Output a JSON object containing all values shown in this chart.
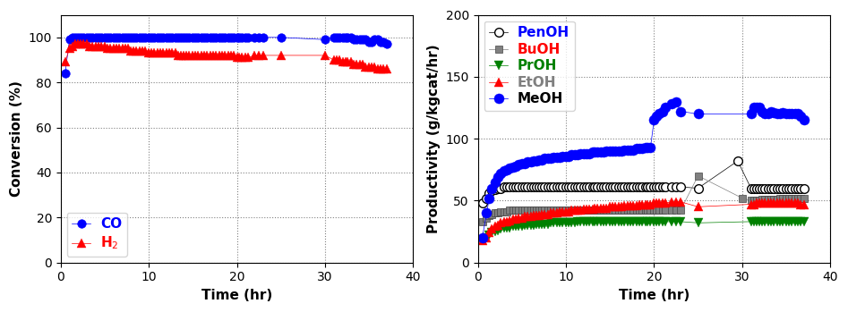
{
  "left": {
    "xlabel": "Time (hr)",
    "ylabel": "Conversion (%)",
    "xlim": [
      0,
      40
    ],
    "ylim": [
      0,
      110
    ],
    "yticks": [
      0,
      20,
      40,
      60,
      80,
      100
    ],
    "xticks": [
      0,
      10,
      20,
      30,
      40
    ],
    "CO_time": [
      0.5,
      1.0,
      1.3,
      1.6,
      2.0,
      2.3,
      2.6,
      3.0,
      3.3,
      3.6,
      4.0,
      4.3,
      4.6,
      5.0,
      5.3,
      5.6,
      6.0,
      6.3,
      6.6,
      7.0,
      7.3,
      7.6,
      8.0,
      8.3,
      8.6,
      9.0,
      9.3,
      9.6,
      10.0,
      10.3,
      10.6,
      11.0,
      11.3,
      11.6,
      12.0,
      12.3,
      12.6,
      13.0,
      13.3,
      13.6,
      14.0,
      14.3,
      14.6,
      15.0,
      15.3,
      15.6,
      16.0,
      16.3,
      16.6,
      17.0,
      17.3,
      17.6,
      18.0,
      18.3,
      18.6,
      19.0,
      19.3,
      19.6,
      20.0,
      20.3,
      20.6,
      21.0,
      21.3,
      22.0,
      22.5,
      23.0,
      25.0,
      30.0,
      31.0,
      31.3,
      31.6,
      32.0,
      32.3,
      32.6,
      33.0,
      33.3,
      33.6,
      34.0,
      34.3,
      34.6,
      35.0,
      35.3,
      35.6,
      36.0,
      36.3,
      36.6,
      37.0
    ],
    "CO_val": [
      84,
      99,
      100,
      100,
      100,
      100,
      100,
      100,
      100,
      100,
      100,
      100,
      100,
      100,
      100,
      100,
      100,
      100,
      100,
      100,
      100,
      100,
      100,
      100,
      100,
      100,
      100,
      100,
      100,
      100,
      100,
      100,
      100,
      100,
      100,
      100,
      100,
      100,
      100,
      100,
      100,
      100,
      100,
      100,
      100,
      100,
      100,
      100,
      100,
      100,
      100,
      100,
      100,
      100,
      100,
      100,
      100,
      100,
      100,
      100,
      100,
      100,
      100,
      100,
      100,
      100,
      100,
      99,
      100,
      100,
      100,
      100,
      100,
      100,
      100,
      99,
      99,
      99,
      99,
      99,
      98,
      98,
      99,
      99,
      98,
      98,
      97
    ],
    "H2_time": [
      0.5,
      1.0,
      1.3,
      1.6,
      2.0,
      2.3,
      2.6,
      3.0,
      3.3,
      3.6,
      4.0,
      4.3,
      4.6,
      5.0,
      5.3,
      5.6,
      6.0,
      6.3,
      6.6,
      7.0,
      7.3,
      7.6,
      8.0,
      8.3,
      8.6,
      9.0,
      9.3,
      9.6,
      10.0,
      10.3,
      10.6,
      11.0,
      11.3,
      11.6,
      12.0,
      12.3,
      12.6,
      13.0,
      13.3,
      13.6,
      14.0,
      14.3,
      14.6,
      15.0,
      15.3,
      15.6,
      16.0,
      16.3,
      16.6,
      17.0,
      17.3,
      17.6,
      18.0,
      18.3,
      18.6,
      19.0,
      19.3,
      19.6,
      20.0,
      20.3,
      20.6,
      21.0,
      21.3,
      22.0,
      22.5,
      23.0,
      25.0,
      30.0,
      31.0,
      31.3,
      31.6,
      32.0,
      32.3,
      32.6,
      33.0,
      33.3,
      33.6,
      34.0,
      34.3,
      34.6,
      35.0,
      35.3,
      35.6,
      36.0,
      36.3,
      36.6,
      37.0
    ],
    "H2_val": [
      89,
      95,
      96,
      97,
      97,
      97,
      97,
      97,
      96,
      96,
      96,
      96,
      96,
      96,
      95,
      95,
      95,
      95,
      95,
      95,
      95,
      95,
      94,
      94,
      94,
      94,
      94,
      94,
      93,
      93,
      93,
      93,
      93,
      93,
      93,
      93,
      93,
      93,
      92,
      92,
      92,
      92,
      92,
      92,
      92,
      92,
      92,
      92,
      92,
      92,
      92,
      92,
      92,
      92,
      92,
      92,
      92,
      92,
      91,
      91,
      91,
      91,
      91,
      92,
      92,
      92,
      92,
      92,
      90,
      90,
      90,
      89,
      89,
      89,
      89,
      88,
      88,
      88,
      88,
      87,
      87,
      87,
      87,
      86,
      86,
      86,
      86
    ],
    "legend_CO_color": "#0000ff",
    "legend_H2_color": "#ff0000"
  },
  "right": {
    "xlabel": "Time (hr)",
    "ylabel": "Productivity (g/kgcat/hr)",
    "xlim": [
      0,
      40
    ],
    "ylim": [
      0,
      200
    ],
    "yticks": [
      0,
      50,
      100,
      150,
      200
    ],
    "xticks": [
      0,
      10,
      20,
      30,
      40
    ],
    "MeOH_time": [
      0.5,
      1.0,
      1.3,
      1.6,
      2.0,
      2.3,
      2.6,
      3.0,
      3.3,
      3.6,
      4.0,
      4.3,
      4.6,
      5.0,
      5.3,
      5.6,
      6.0,
      6.3,
      6.6,
      7.0,
      7.3,
      7.6,
      8.0,
      8.3,
      8.6,
      9.0,
      9.3,
      9.6,
      10.0,
      10.3,
      10.6,
      11.0,
      11.3,
      11.6,
      12.0,
      12.3,
      12.6,
      13.0,
      13.3,
      13.6,
      14.0,
      14.3,
      14.6,
      15.0,
      15.3,
      15.6,
      16.0,
      16.3,
      16.6,
      17.0,
      17.3,
      17.6,
      18.0,
      18.3,
      18.6,
      19.0,
      19.3,
      19.6,
      20.0,
      20.3,
      20.6,
      21.0,
      21.3,
      22.0,
      22.5,
      23.0,
      25.0,
      31.0,
      31.3,
      31.6,
      32.0,
      32.3,
      32.6,
      33.0,
      33.3,
      33.6,
      34.0,
      34.3,
      34.6,
      35.0,
      35.3,
      35.6,
      36.0,
      36.3,
      36.6,
      37.0
    ],
    "MeOH_val": [
      20,
      40,
      52,
      60,
      65,
      69,
      72,
      74,
      75,
      76,
      77,
      78,
      79,
      80,
      80,
      81,
      81,
      82,
      82,
      83,
      83,
      84,
      84,
      84,
      85,
      85,
      85,
      86,
      86,
      86,
      87,
      87,
      87,
      88,
      88,
      88,
      88,
      89,
      89,
      89,
      89,
      89,
      90,
      90,
      90,
      90,
      90,
      90,
      91,
      91,
      91,
      91,
      92,
      92,
      92,
      93,
      93,
      93,
      115,
      118,
      120,
      122,
      125,
      128,
      130,
      122,
      120,
      120,
      125,
      125,
      125,
      122,
      120,
      120,
      122,
      121,
      120,
      120,
      121,
      120,
      120,
      120,
      120,
      120,
      118,
      115
    ],
    "EtOH_time": [
      0.5,
      1.0,
      1.3,
      1.6,
      2.0,
      2.3,
      2.6,
      3.0,
      3.3,
      3.6,
      4.0,
      4.3,
      4.6,
      5.0,
      5.3,
      5.6,
      6.0,
      6.3,
      6.6,
      7.0,
      7.3,
      7.6,
      8.0,
      8.3,
      8.6,
      9.0,
      9.3,
      9.6,
      10.0,
      10.3,
      10.6,
      11.0,
      11.3,
      11.6,
      12.0,
      12.3,
      12.6,
      13.0,
      13.3,
      13.6,
      14.0,
      14.3,
      14.6,
      15.0,
      15.3,
      15.6,
      16.0,
      16.3,
      16.6,
      17.0,
      17.3,
      17.6,
      18.0,
      18.3,
      18.6,
      19.0,
      19.3,
      19.6,
      20.0,
      20.3,
      20.6,
      21.0,
      21.3,
      22.0,
      22.5,
      23.0,
      25.0,
      31.0,
      31.3,
      31.6,
      32.0,
      32.3,
      32.6,
      33.0,
      33.3,
      33.6,
      34.0,
      34.3,
      34.6,
      35.0,
      35.3,
      35.6,
      36.0,
      36.3,
      36.6,
      37.0
    ],
    "EtOH_val": [
      18,
      20,
      24,
      27,
      29,
      30,
      32,
      33,
      33,
      34,
      35,
      35,
      36,
      36,
      37,
      37,
      37,
      38,
      38,
      38,
      39,
      39,
      39,
      40,
      40,
      40,
      41,
      41,
      41,
      41,
      42,
      42,
      42,
      42,
      43,
      43,
      43,
      43,
      44,
      44,
      44,
      44,
      44,
      45,
      45,
      45,
      45,
      45,
      46,
      46,
      46,
      46,
      46,
      47,
      47,
      47,
      47,
      47,
      48,
      48,
      48,
      48,
      48,
      49,
      49,
      49,
      45,
      47,
      47,
      48,
      48,
      48,
      48,
      48,
      48,
      48,
      48,
      48,
      48,
      48,
      48,
      48,
      48,
      48,
      47,
      47
    ],
    "PrOH_time": [
      0.5,
      1.0,
      1.3,
      1.6,
      2.0,
      2.3,
      2.6,
      3.0,
      3.3,
      3.6,
      4.0,
      4.3,
      4.6,
      5.0,
      5.3,
      5.6,
      6.0,
      6.3,
      6.6,
      7.0,
      7.3,
      7.6,
      8.0,
      8.3,
      8.6,
      9.0,
      9.3,
      9.6,
      10.0,
      10.3,
      10.6,
      11.0,
      11.3,
      11.6,
      12.0,
      12.3,
      12.6,
      13.0,
      13.3,
      13.6,
      14.0,
      14.3,
      14.6,
      15.0,
      15.3,
      15.6,
      16.0,
      16.3,
      16.6,
      17.0,
      17.3,
      17.6,
      18.0,
      18.3,
      18.6,
      19.0,
      19.3,
      19.6,
      20.0,
      20.3,
      20.6,
      21.0,
      21.3,
      22.0,
      22.5,
      23.0,
      25.0,
      31.0,
      31.3,
      31.6,
      32.0,
      32.3,
      32.6,
      33.0,
      33.3,
      33.6,
      34.0,
      34.3,
      34.6,
      35.0,
      35.3,
      35.6,
      36.0,
      36.3,
      36.6,
      37.0
    ],
    "PrOH_val": [
      18,
      20,
      22,
      24,
      25,
      26,
      27,
      28,
      28,
      28,
      29,
      29,
      29,
      29,
      30,
      30,
      30,
      30,
      31,
      31,
      31,
      31,
      31,
      32,
      32,
      32,
      32,
      32,
      32,
      32,
      32,
      32,
      33,
      33,
      33,
      33,
      33,
      33,
      33,
      33,
      33,
      33,
      33,
      33,
      33,
      33,
      33,
      33,
      33,
      33,
      33,
      33,
      33,
      33,
      33,
      33,
      33,
      33,
      33,
      33,
      33,
      33,
      33,
      33,
      33,
      33,
      32,
      33,
      33,
      33,
      33,
      33,
      33,
      33,
      33,
      33,
      33,
      33,
      33,
      33,
      33,
      33,
      33,
      33,
      33,
      33
    ],
    "BuOH_time": [
      0.5,
      1.0,
      1.3,
      1.6,
      2.0,
      2.3,
      2.6,
      3.0,
      3.3,
      3.6,
      4.0,
      4.3,
      4.6,
      5.0,
      5.3,
      5.6,
      6.0,
      6.3,
      6.6,
      7.0,
      7.3,
      7.6,
      8.0,
      8.3,
      8.6,
      9.0,
      9.3,
      9.6,
      10.0,
      10.3,
      10.6,
      11.0,
      11.3,
      11.6,
      12.0,
      12.3,
      12.6,
      13.0,
      13.3,
      13.6,
      14.0,
      14.3,
      14.6,
      15.0,
      15.3,
      15.6,
      16.0,
      16.3,
      16.6,
      17.0,
      17.3,
      17.6,
      18.0,
      18.3,
      18.6,
      19.0,
      19.3,
      19.6,
      20.0,
      20.3,
      20.6,
      21.0,
      21.3,
      22.0,
      22.5,
      23.0,
      25.0,
      30.0,
      31.0,
      31.3,
      31.6,
      32.0,
      32.3,
      32.6,
      33.0,
      33.3,
      33.6,
      34.0,
      34.3,
      34.6,
      35.0,
      35.3,
      35.6,
      36.0,
      36.3,
      36.6,
      37.0
    ],
    "BuOH_val": [
      33,
      36,
      38,
      39,
      40,
      40,
      41,
      41,
      41,
      42,
      42,
      42,
      42,
      42,
      42,
      42,
      42,
      42,
      42,
      42,
      42,
      42,
      42,
      42,
      42,
      42,
      42,
      42,
      42,
      42,
      42,
      42,
      42,
      42,
      42,
      42,
      42,
      42,
      42,
      42,
      42,
      42,
      42,
      42,
      42,
      42,
      42,
      42,
      42,
      42,
      42,
      42,
      42,
      42,
      42,
      42,
      42,
      42,
      42,
      42,
      42,
      42,
      42,
      42,
      42,
      42,
      70,
      52,
      50,
      50,
      50,
      50,
      51,
      51,
      51,
      51,
      51,
      51,
      52,
      52,
      52,
      52,
      52,
      52,
      52,
      52,
      52
    ],
    "PenOH_time": [
      0.5,
      1.0,
      1.3,
      1.6,
      2.0,
      2.3,
      2.6,
      3.0,
      3.3,
      3.6,
      4.0,
      4.3,
      4.6,
      5.0,
      5.3,
      5.6,
      6.0,
      6.3,
      6.6,
      7.0,
      7.3,
      7.6,
      8.0,
      8.3,
      8.6,
      9.0,
      9.3,
      9.6,
      10.0,
      10.3,
      10.6,
      11.0,
      11.3,
      11.6,
      12.0,
      12.3,
      12.6,
      13.0,
      13.3,
      13.6,
      14.0,
      14.3,
      14.6,
      15.0,
      15.3,
      15.6,
      16.0,
      16.3,
      16.6,
      17.0,
      17.3,
      17.6,
      18.0,
      18.3,
      18.6,
      19.0,
      19.3,
      19.6,
      20.0,
      20.3,
      20.6,
      21.0,
      21.3,
      22.0,
      22.5,
      23.0,
      25.0,
      29.5,
      31.0,
      31.3,
      31.6,
      32.0,
      32.3,
      32.6,
      33.0,
      33.3,
      33.6,
      34.0,
      34.3,
      34.6,
      35.0,
      35.3,
      35.6,
      36.0,
      36.3,
      36.6,
      37.0
    ],
    "PenOH_val": [
      48,
      52,
      56,
      58,
      59,
      60,
      60,
      61,
      61,
      61,
      61,
      61,
      61,
      61,
      61,
      61,
      61,
      61,
      61,
      61,
      61,
      61,
      61,
      61,
      61,
      61,
      61,
      61,
      61,
      61,
      61,
      61,
      61,
      61,
      61,
      61,
      61,
      61,
      61,
      61,
      61,
      61,
      61,
      61,
      61,
      61,
      61,
      61,
      61,
      61,
      61,
      61,
      61,
      61,
      61,
      61,
      61,
      61,
      61,
      61,
      61,
      61,
      61,
      61,
      61,
      61,
      60,
      82,
      60,
      60,
      60,
      60,
      60,
      60,
      60,
      60,
      60,
      60,
      60,
      60,
      60,
      60,
      60,
      60,
      60,
      60,
      60
    ],
    "MeOH_color": "#0000ff",
    "EtOH_color": "#ff0000",
    "PrOH_color": "#008000",
    "BuOH_color": "#808080",
    "PenOH_color": "#000000"
  }
}
